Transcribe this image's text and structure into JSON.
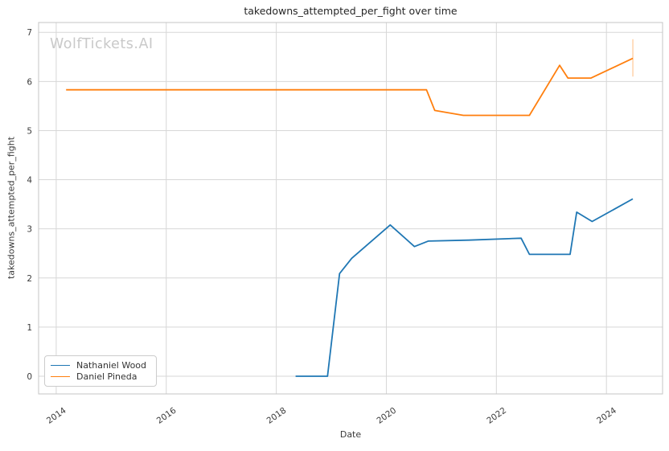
{
  "title": "takedowns_attempted_per_fight over time",
  "watermark": "WolfTickets.AI",
  "colors": {
    "series_blue": "#1f77b4",
    "series_orange": "#ff7f0e",
    "grid": "#d7d7d7",
    "spine": "#c4c4c4",
    "tick_text": "#3b3b3b",
    "title_text": "#262626",
    "watermark_text": "#c9c9c9"
  },
  "legend": {
    "items": [
      {
        "label": "Nathaniel Wood",
        "color": "#1f77b4"
      },
      {
        "label": "Daniel Pineda",
        "color": "#ff7f0e"
      }
    ]
  },
  "chart_data": {
    "type": "line",
    "title": "takedowns_attempted_per_fight over time",
    "xlabel": "Date",
    "ylabel": "takedowns_attempted_per_fight",
    "x_tick_labels": [
      "2014",
      "2016",
      "2018",
      "2020",
      "2022",
      "2024"
    ],
    "x_ticks": [
      2014,
      2016,
      2018,
      2020,
      2022,
      2024
    ],
    "y_tick_labels": [
      "0",
      "1",
      "2",
      "3",
      "4",
      "5",
      "6",
      "7"
    ],
    "y_ticks": [
      0,
      1,
      2,
      3,
      4,
      5,
      6,
      7
    ],
    "x_range": [
      2013.68,
      2025.02
    ],
    "y_range": [
      -0.36,
      7.2
    ],
    "grid": true,
    "legend_position": "lower left",
    "series": [
      {
        "name": "Nathaniel Wood",
        "color": "#1f77b4",
        "points": [
          [
            2018.35,
            0.0
          ],
          [
            2018.93,
            0.0
          ],
          [
            2019.15,
            2.09
          ],
          [
            2019.37,
            2.4
          ],
          [
            2020.07,
            3.08
          ],
          [
            2020.51,
            2.64
          ],
          [
            2020.76,
            2.75
          ],
          [
            2021.5,
            2.77
          ],
          [
            2022.45,
            2.81
          ],
          [
            2022.6,
            2.48
          ],
          [
            2023.34,
            2.48
          ],
          [
            2023.46,
            3.34
          ],
          [
            2023.74,
            3.15
          ],
          [
            2024.48,
            3.61
          ]
        ]
      },
      {
        "name": "Daniel Pineda",
        "color": "#ff7f0e",
        "points": [
          [
            2014.18,
            5.83
          ],
          [
            2020.73,
            5.83
          ],
          [
            2020.88,
            5.41
          ],
          [
            2021.4,
            5.31
          ],
          [
            2022.6,
            5.31
          ],
          [
            2023.15,
            6.33
          ],
          [
            2023.3,
            6.07
          ],
          [
            2023.72,
            6.07
          ],
          [
            2024.48,
            6.47
          ]
        ],
        "error_bar_last": {
          "low": 6.1,
          "high": 6.86
        }
      }
    ]
  }
}
